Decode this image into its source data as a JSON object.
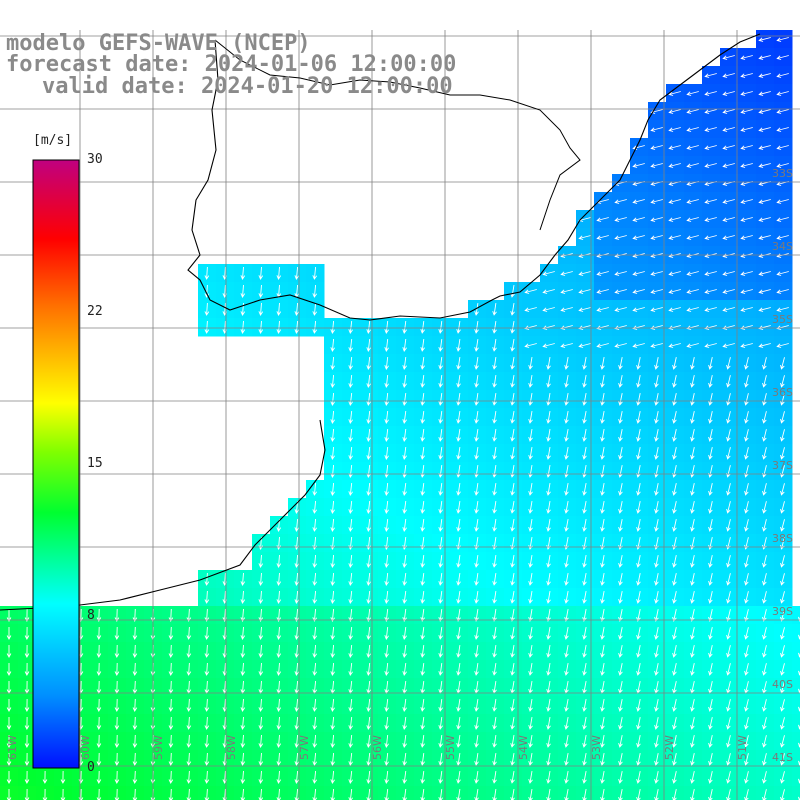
{
  "title": {
    "model": "modelo GEFS-WAVE (NCEP)",
    "forecast": "forecast date: 2024-01-06 12:00:00",
    "valid": "valid date: 2024-01-20 12:00:00"
  },
  "colorbar": {
    "unit": "[m/s]",
    "ticks": [
      "30",
      "22",
      "15",
      "8",
      "0"
    ],
    "range": [
      0,
      30
    ],
    "colors": [
      "#0010ff",
      "#00b0ff",
      "#00ffff",
      "#00ff40",
      "#70ff00",
      "#ffff00",
      "#ff7000",
      "#ff0000",
      "#c00090"
    ]
  },
  "map": {
    "variable": "wind speed",
    "longitude_labels": [
      "61W",
      "60W",
      "59W",
      "58W",
      "57W",
      "56W",
      "55W",
      "54W",
      "53W",
      "52W",
      "51W"
    ],
    "latitude_labels": [
      "33S",
      "34S",
      "35S",
      "36S",
      "37S",
      "38S",
      "39S",
      "40S",
      "41S"
    ],
    "land_color": "#ffffff",
    "coastline_color": "#000000",
    "grid_color": "#808080",
    "arrow_color": "#ffffff"
  }
}
